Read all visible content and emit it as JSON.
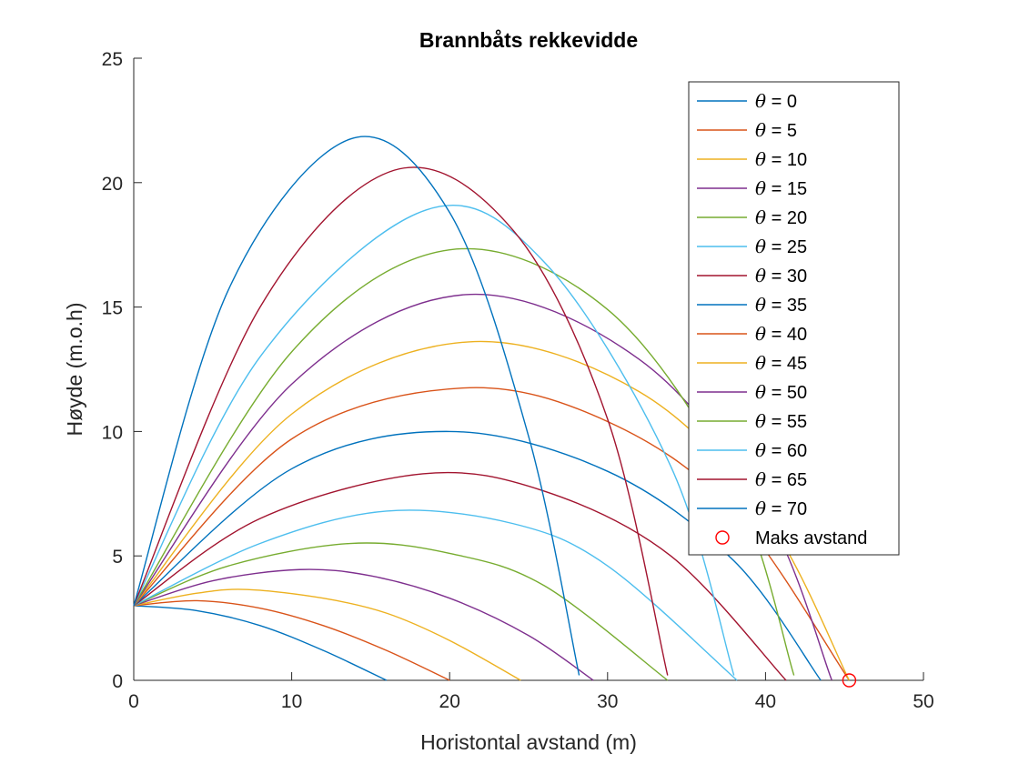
{
  "chart_data": {
    "type": "line",
    "title": "Brannbåts rekkevidde",
    "xlabel": "Horistontal avstand (m)",
    "ylabel": "Høyde  (m.o.h)",
    "xlim": [
      0,
      50
    ],
    "ylim": [
      0,
      25
    ],
    "xticks": [
      0,
      10,
      20,
      30,
      40,
      50
    ],
    "yticks": [
      0,
      5,
      10,
      15,
      20,
      25
    ],
    "grid": false,
    "legend_position": "top-right",
    "launch_height": 3.0,
    "series": [
      {
        "name": "θ = 0",
        "color": "#0072BD",
        "x": [
          0,
          4,
          8,
          12,
          16
        ],
        "y": [
          3.0,
          2.8,
          2.2,
          1.2,
          0.0
        ]
      },
      {
        "name": "θ = 5",
        "color": "#D95319",
        "x": [
          0,
          4,
          8,
          12,
          16,
          20
        ],
        "y": [
          3.0,
          3.2,
          2.9,
          2.2,
          1.2,
          0.0
        ]
      },
      {
        "name": "θ = 10",
        "color": "#EDB120",
        "x": [
          0,
          4,
          7.2,
          12,
          16,
          20,
          24.5
        ],
        "y": [
          3.0,
          3.5,
          3.65,
          3.3,
          2.7,
          1.6,
          0.0
        ]
      },
      {
        "name": "θ = 15",
        "color": "#7E2F8E",
        "x": [
          0,
          5,
          10.5,
          15,
          20,
          25,
          29.1
        ],
        "y": [
          3.0,
          4.0,
          4.45,
          4.2,
          3.3,
          1.8,
          0.0
        ]
      },
      {
        "name": "θ = 20",
        "color": "#77AC30",
        "x": [
          0,
          6,
          13.7,
          20,
          26,
          33.8
        ],
        "y": [
          3.0,
          4.6,
          5.5,
          5.1,
          3.8,
          0.0
        ]
      },
      {
        "name": "θ = 25",
        "color": "#4DBEEE",
        "x": [
          0,
          8,
          16,
          24,
          30,
          38.2
        ],
        "y": [
          3.0,
          5.5,
          6.8,
          6.3,
          4.6,
          0.0
        ]
      },
      {
        "name": "θ = 30",
        "color": "#A2142F",
        "x": [
          0,
          8,
          18.3,
          26,
          34,
          41.3
        ],
        "y": [
          3.0,
          6.5,
          8.3,
          7.6,
          5.0,
          0.0
        ]
      },
      {
        "name": "θ = 35",
        "color": "#0072BD",
        "x": [
          0,
          10,
          20,
          30,
          38,
          43.5
        ],
        "y": [
          3.0,
          8.5,
          10.0,
          8.4,
          4.8,
          0.0
        ]
      },
      {
        "name": "θ = 40",
        "color": "#D95319",
        "x": [
          0,
          10,
          20.9,
          30,
          38,
          45.3
        ],
        "y": [
          3.0,
          9.7,
          11.75,
          10.4,
          6.8,
          0.0
        ]
      },
      {
        "name": "θ = 45",
        "color": "#EDB120",
        "x": [
          0,
          10,
          21.2,
          32,
          40,
          45.3
        ],
        "y": [
          3.0,
          10.7,
          13.6,
          11.6,
          6.6,
          0.0
        ]
      },
      {
        "name": "θ = 50",
        "color": "#7E2F8E",
        "x": [
          0,
          10,
          21.0,
          32,
          40,
          44.2
        ],
        "y": [
          3.0,
          11.9,
          15.5,
          12.9,
          6.8,
          0.0
        ]
      },
      {
        "name": "θ = 55",
        "color": "#77AC30",
        "x": [
          0,
          10,
          20.0,
          30,
          38,
          41.8
        ],
        "y": [
          3.0,
          13.2,
          17.3,
          14.9,
          7.8,
          0.2
        ]
      },
      {
        "name": "θ = 60",
        "color": "#4DBEEE",
        "x": [
          0,
          8,
          18.5,
          26,
          34,
          38.0
        ],
        "y": [
          3.0,
          13.0,
          18.9,
          16.8,
          8.6,
          0.2
        ]
      },
      {
        "name": "θ = 65",
        "color": "#A2142F",
        "x": [
          0,
          8,
          16.5,
          24,
          30,
          33.8
        ],
        "y": [
          3.0,
          15.0,
          20.5,
          18.1,
          10.5,
          0.2
        ]
      },
      {
        "name": "θ = 70",
        "color": "#0072BD",
        "x": [
          0,
          6,
          13.7,
          20,
          25,
          28.2
        ],
        "y": [
          3.0,
          15.7,
          21.75,
          18.8,
          9.8,
          0.2
        ]
      }
    ],
    "marker": {
      "name": "Maks avstand",
      "color": "#FF0000",
      "x": 45.3,
      "y": 0.0
    }
  }
}
